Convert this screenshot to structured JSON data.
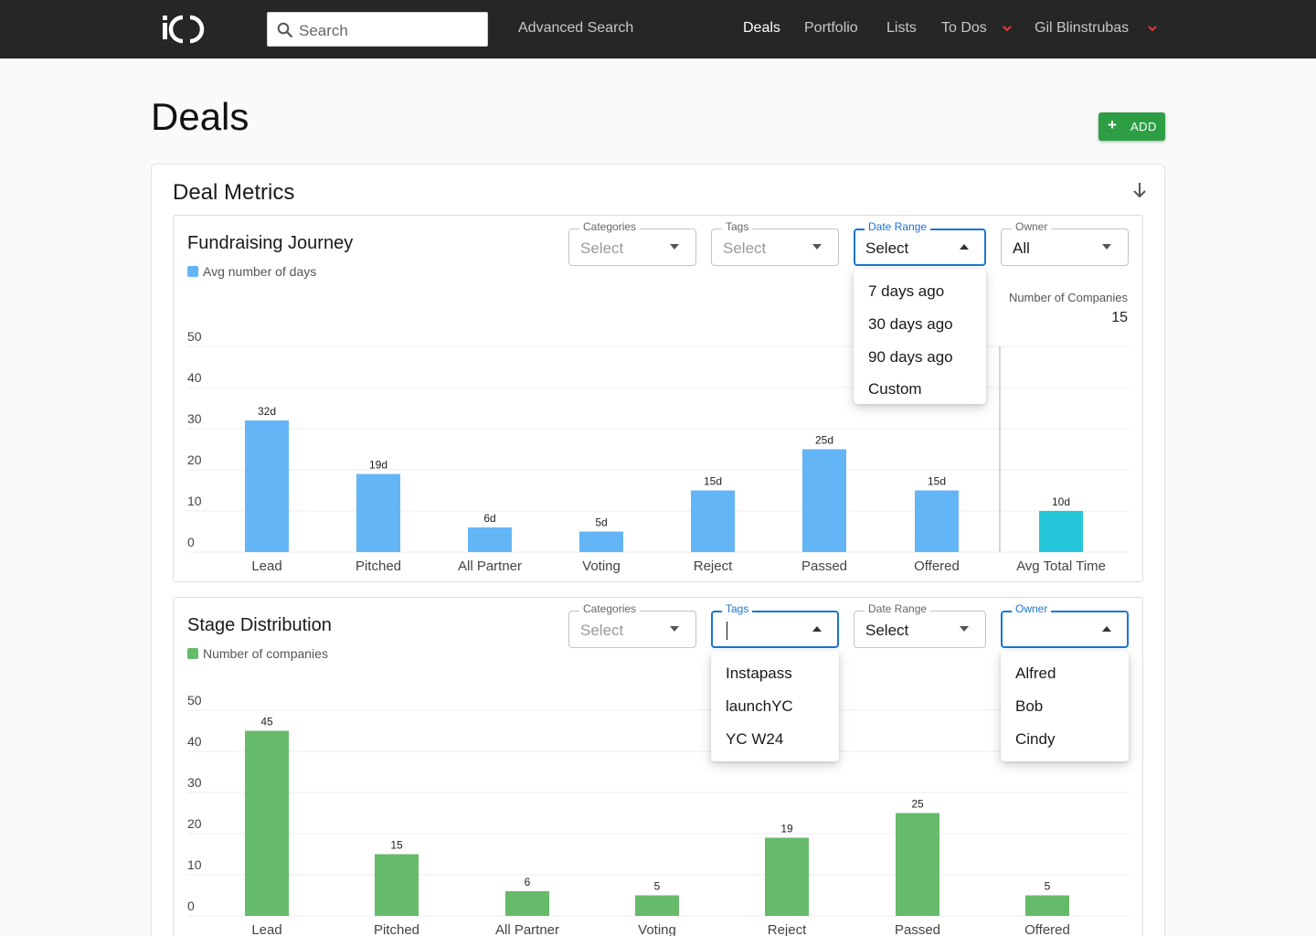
{
  "nav": {
    "logo_text": "iO",
    "search_placeholder": "Search",
    "advanced_search": "Advanced Search",
    "links": [
      "Deals",
      "Portfolio",
      "Lists",
      "To Dos",
      "Gil Blinstrubas"
    ],
    "active": "Deals"
  },
  "page": {
    "title": "Deals",
    "add_label": "ADD"
  },
  "metrics": {
    "title": "Deal Metrics"
  },
  "fundraising": {
    "title": "Fundraising Journey",
    "legend": "Avg number of days",
    "filters": {
      "categories": {
        "label": "Categories",
        "value": "Select"
      },
      "tags": {
        "label": "Tags",
        "value": "Select"
      },
      "date_range": {
        "label": "Date Range",
        "value": "Select"
      },
      "owner": {
        "label": "Owner",
        "value": "All"
      }
    },
    "date_menu": [
      "7 days ago",
      "30 days ago",
      "90 days ago",
      "Custom"
    ],
    "number_of_companies_label": "Number of Companies",
    "number_of_companies": "15"
  },
  "distribution": {
    "title": "Stage Distribution",
    "legend": "Number of companies",
    "filters": {
      "categories": {
        "label": "Categories",
        "value": "Select"
      },
      "tags": {
        "label": "Tags",
        "value": ""
      },
      "date_range": {
        "label": "Date Range",
        "value": "Select"
      },
      "owner": {
        "label": "Owner",
        "value": ""
      }
    },
    "tags_menu": [
      "Instapass",
      "launchYC",
      "YC W24"
    ],
    "owner_menu": [
      "Alfred",
      "Bob",
      "Cindy"
    ]
  },
  "colors": {
    "blue_bar": "#64b5f6",
    "teal_bar": "#26c6da",
    "green_bar": "#66bb6a",
    "add_button": "#2e9e45",
    "focus": "#1976d2",
    "nav_caret": "#e53935"
  },
  "icons": {
    "search": "search-icon",
    "collapse": "arrow-down-icon",
    "dropdown": "caret-down-icon",
    "add": "plus-icon"
  },
  "chart_data": [
    {
      "type": "bar",
      "categories": [
        "Lead",
        "Pitched",
        "All Partner",
        "Voting",
        "Reject",
        "Passed",
        "Offered",
        "Avg Total Time"
      ],
      "values": [
        32,
        19,
        6,
        5,
        15,
        25,
        15,
        10
      ],
      "data_labels": [
        "32d",
        "19d",
        "6d",
        "5d",
        "15d",
        "25d",
        "15d",
        "10d"
      ],
      "yticks": [
        "0",
        "10",
        "20",
        "30",
        "40",
        "50"
      ],
      "ylim": [
        0,
        50
      ],
      "legend": "Avg number of days",
      "grid": true
    },
    {
      "type": "bar",
      "categories": [
        "Lead",
        "Pitched",
        "All Partner",
        "Voting",
        "Reject",
        "Passed",
        "Offered"
      ],
      "values": [
        45,
        15,
        6,
        5,
        19,
        25,
        5
      ],
      "data_labels": [
        "45",
        "15",
        "6",
        "5",
        "19",
        "25",
        "5"
      ],
      "yticks": [
        "0",
        "10",
        "20",
        "30",
        "40",
        "50"
      ],
      "ylim": [
        0,
        50
      ],
      "legend": "Number of companies",
      "grid": true
    }
  ]
}
